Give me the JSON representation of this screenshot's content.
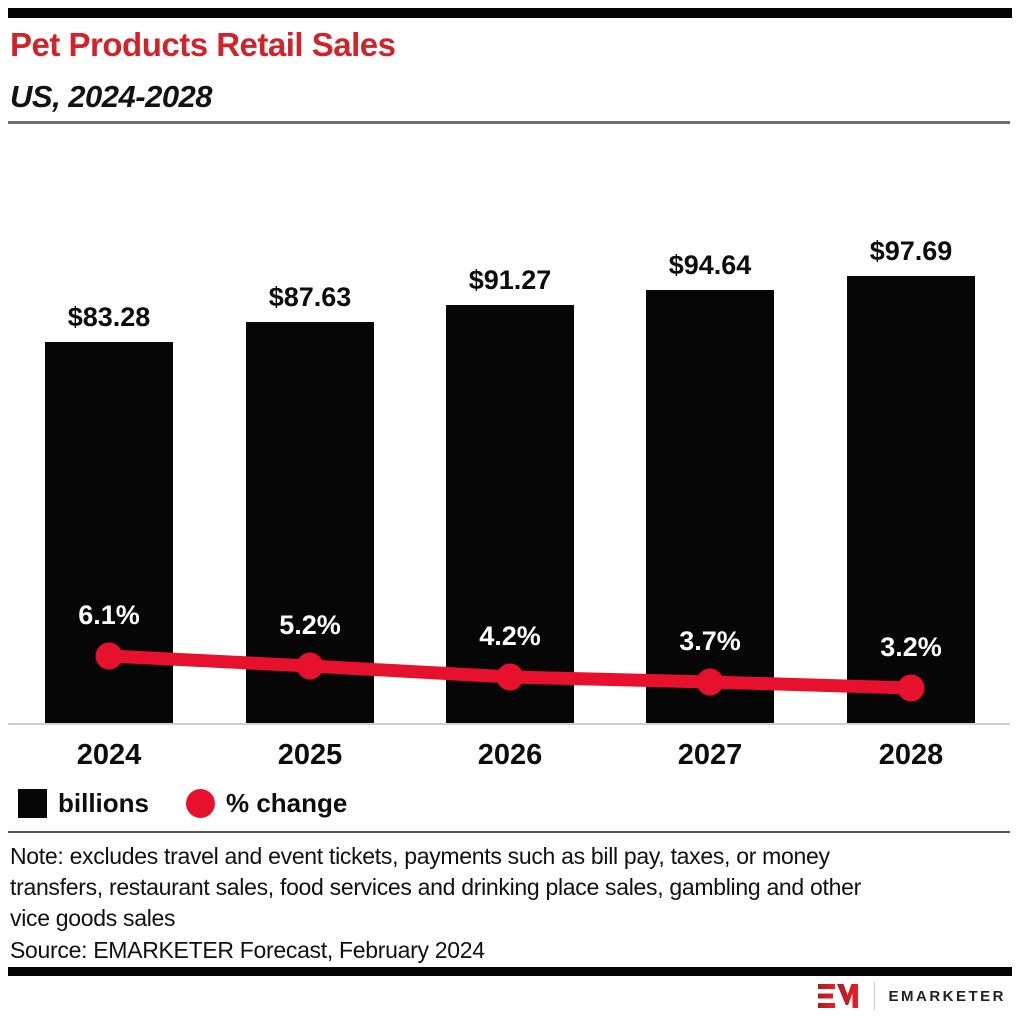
{
  "header": {
    "title": "Pet Products Retail Sales",
    "subtitle": "US, 2024-2028"
  },
  "chart_data": {
    "type": "bar",
    "title": "Pet Products Retail Sales",
    "subtitle": "US, 2024-2028",
    "categories": [
      "2024",
      "2025",
      "2026",
      "2027",
      "2028"
    ],
    "series": [
      {
        "name": "billions",
        "type": "bar",
        "values": [
          83.28,
          87.63,
          91.27,
          94.64,
          97.69
        ],
        "labels": [
          "$83.28",
          "$87.63",
          "$91.27",
          "$94.64",
          "$97.69"
        ],
        "color": "#060606"
      },
      {
        "name": "% change",
        "type": "line",
        "values": [
          6.1,
          5.2,
          4.2,
          3.7,
          3.2
        ],
        "labels": [
          "6.1%",
          "5.2%",
          "4.2%",
          "3.7%",
          "3.2%"
        ],
        "color": "#e8112d"
      }
    ],
    "legend": [
      {
        "label": "billions",
        "swatch": "square",
        "color": "#060606"
      },
      {
        "label": "% change",
        "swatch": "circle",
        "color": "#e8112d"
      }
    ],
    "legend_position": "bottom-left",
    "grid": false,
    "value_axis_visible": false,
    "xlabel": "",
    "ylabel": ""
  },
  "footnote": {
    "note": "Note: excludes travel and event tickets, payments such as bill pay, taxes, or money\ntransfers, restaurant sales, food services and drinking place sales, gambling and other\nvice goods sales",
    "source": "Source: EMARKETER Forecast, February 2024"
  },
  "footer": {
    "brand": "EMARKETER"
  },
  "colors": {
    "title_red": "#d2232a",
    "line_red": "#e8112d",
    "bar_black": "#060606"
  }
}
